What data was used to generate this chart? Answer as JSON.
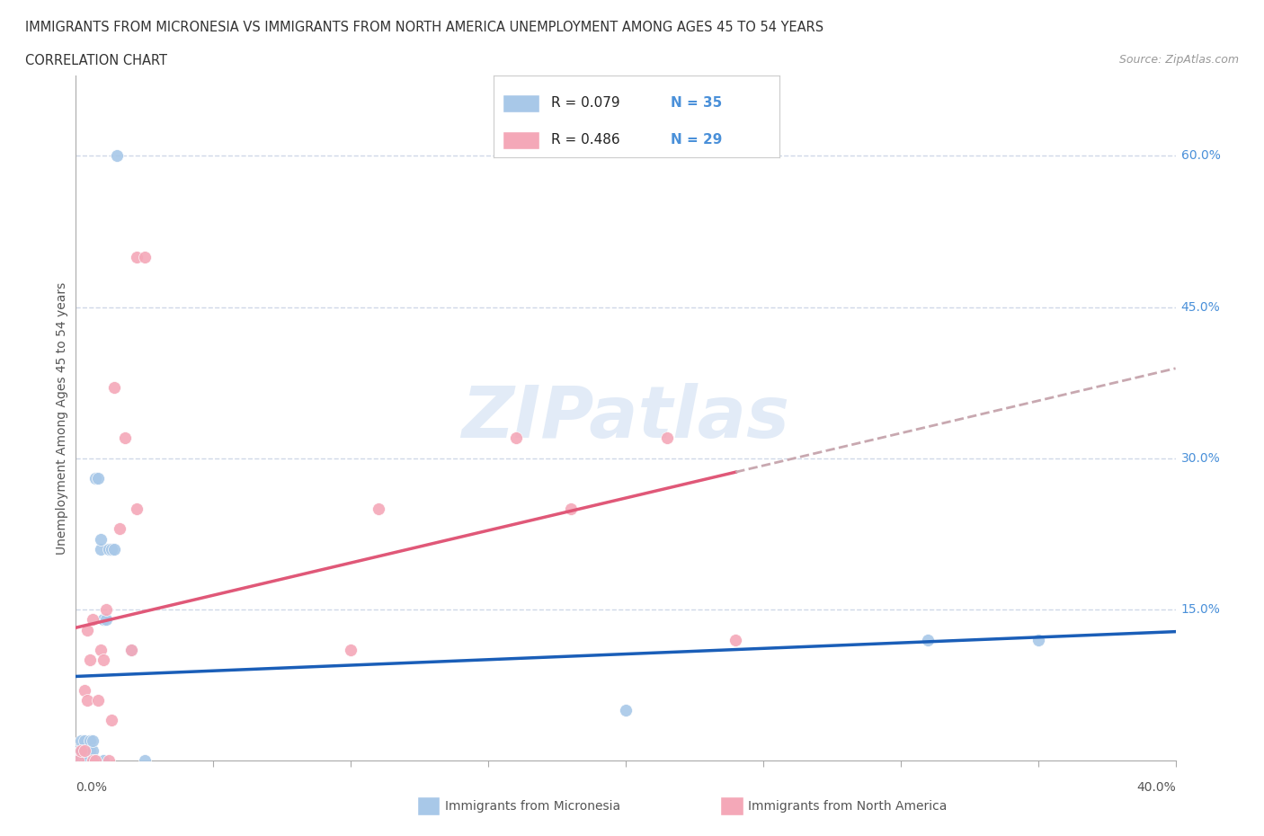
{
  "title_line1": "IMMIGRANTS FROM MICRONESIA VS IMMIGRANTS FROM NORTH AMERICA UNEMPLOYMENT AMONG AGES 45 TO 54 YEARS",
  "title_line2": "CORRELATION CHART",
  "source_text": "Source: ZipAtlas.com",
  "ylabel": "Unemployment Among Ages 45 to 54 years",
  "xlim": [
    0,
    0.4
  ],
  "ylim": [
    0,
    0.68
  ],
  "micronesia_R": 0.079,
  "micronesia_N": 35,
  "northamerica_R": 0.486,
  "northamerica_N": 29,
  "micronesia_color": "#a8c8e8",
  "northamerica_color": "#f4a8b8",
  "micronesia_line_color": "#1a5eb8",
  "northamerica_line_color": "#e05878",
  "dashed_line_color": "#c8a8b0",
  "micronesia_x": [
    0.001,
    0.001,
    0.001,
    0.002,
    0.002,
    0.002,
    0.002,
    0.003,
    0.003,
    0.003,
    0.003,
    0.004,
    0.004,
    0.005,
    0.005,
    0.006,
    0.006,
    0.006,
    0.007,
    0.007,
    0.008,
    0.009,
    0.009,
    0.01,
    0.01,
    0.011,
    0.012,
    0.013,
    0.014,
    0.015,
    0.02,
    0.025,
    0.2,
    0.31,
    0.35
  ],
  "micronesia_y": [
    0.0,
    0.005,
    0.01,
    0.0,
    0.005,
    0.01,
    0.02,
    0.0,
    0.005,
    0.01,
    0.02,
    0.0,
    0.005,
    0.01,
    0.02,
    0.0,
    0.01,
    0.02,
    0.0,
    0.28,
    0.28,
    0.21,
    0.22,
    0.0,
    0.14,
    0.14,
    0.21,
    0.21,
    0.21,
    0.6,
    0.11,
    0.0,
    0.05,
    0.12,
    0.12
  ],
  "northamerica_x": [
    0.001,
    0.002,
    0.003,
    0.003,
    0.004,
    0.004,
    0.005,
    0.006,
    0.006,
    0.007,
    0.008,
    0.009,
    0.01,
    0.011,
    0.012,
    0.013,
    0.014,
    0.016,
    0.018,
    0.02,
    0.022,
    0.022,
    0.025,
    0.1,
    0.11,
    0.16,
    0.18,
    0.215,
    0.24
  ],
  "northamerica_y": [
    0.0,
    0.01,
    0.01,
    0.07,
    0.06,
    0.13,
    0.1,
    0.0,
    0.14,
    0.0,
    0.06,
    0.11,
    0.1,
    0.15,
    0.0,
    0.04,
    0.37,
    0.23,
    0.32,
    0.11,
    0.25,
    0.5,
    0.5,
    0.11,
    0.25,
    0.32,
    0.25,
    0.32,
    0.12
  ],
  "background_color": "#ffffff",
  "grid_color": "#d0d8e8",
  "watermark": "ZIPatlas",
  "xtick_positions": [
    0.05,
    0.1,
    0.15,
    0.2,
    0.25,
    0.3,
    0.35,
    0.4
  ],
  "ytick_values": [
    0.15,
    0.3,
    0.45,
    0.6
  ]
}
